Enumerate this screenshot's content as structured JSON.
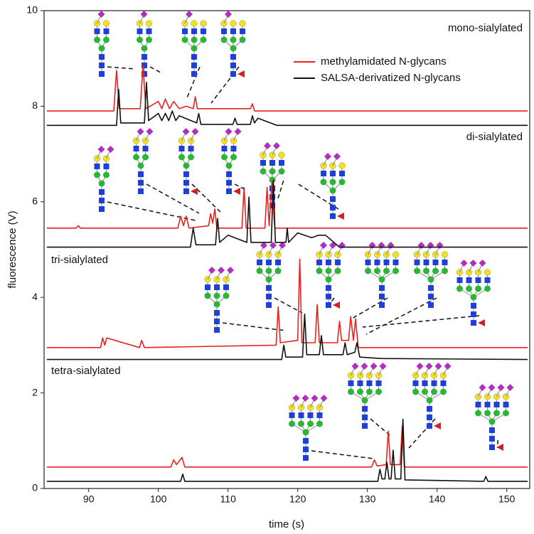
{
  "chart_data": {
    "type": "line",
    "x_label": "time (s)",
    "y_label": "fluorescence (V)",
    "xlim": [
      83.6,
      153.3
    ],
    "ylim": [
      0,
      10
    ],
    "xticks": [
      90,
      100,
      110,
      120,
      130,
      140,
      150
    ],
    "yticks": [
      0,
      2,
      4,
      6,
      8,
      10
    ],
    "legend_position": "upper right",
    "series": [
      {
        "name": "methylamidated N-glycans",
        "color": "#e8231f"
      },
      {
        "name": "SALSA-derivatized N-glycans",
        "color": "#111111"
      }
    ],
    "panels": [
      {
        "label": "mono-sialylated",
        "series": [
          {
            "x": [
              84,
              93.6,
              94,
              94.4,
              97.4,
              97.8,
              98.2,
              100,
              100.5,
              101,
              101.6,
              102.2,
              103,
              104,
              105,
              105.3,
              105.6,
              108,
              113.2,
              113.5,
              113.8,
              153
            ],
            "values": [
              7.9,
              7.9,
              8.75,
              7.95,
              7.95,
              8.85,
              7.95,
              8.1,
              7.95,
              8.15,
              7.95,
              8.1,
              7.95,
              8.0,
              7.95,
              8.2,
              7.95,
              7.95,
              7.95,
              8.05,
              7.9,
              7.9
            ]
          },
          {
            "x": [
              84,
              94,
              94.3,
              94.6,
              98,
              98.3,
              98.6,
              100,
              100.5,
              101,
              101.5,
              102,
              102.5,
              103,
              105.5,
              105.8,
              106.1,
              110.7,
              111,
              111.3,
              113.2,
              113.5,
              113.8,
              114.3,
              117,
              153
            ],
            "values": [
              7.6,
              7.6,
              8.35,
              7.65,
              7.65,
              8.5,
              7.7,
              7.85,
              7.7,
              7.85,
              7.7,
              7.9,
              7.7,
              7.8,
              7.65,
              7.85,
              7.62,
              7.62,
              7.75,
              7.62,
              7.62,
              7.8,
              7.65,
              7.75,
              7.6,
              7.6
            ]
          }
        ]
      },
      {
        "label": "di-sialylated",
        "series": [
          {
            "x": [
              84,
              88.2,
              88.5,
              88.8,
              102.8,
              103.2,
              103.6,
              104,
              104.4,
              107.2,
              107.5,
              107.8,
              108.1,
              108.4,
              112,
              112.3,
              112.6,
              115.3,
              115.6,
              115.9,
              116.3,
              116.7,
              153
            ],
            "values": [
              5.45,
              5.45,
              5.5,
              5.45,
              5.45,
              5.7,
              5.5,
              5.7,
              5.45,
              5.5,
              5.75,
              5.55,
              5.85,
              5.45,
              5.45,
              6.3,
              5.45,
              5.45,
              6.3,
              5.5,
              6.4,
              5.45,
              5.45
            ]
          },
          {
            "x": [
              84,
              104.6,
              105,
              105.4,
              108.2,
              108.5,
              108.8,
              110,
              112.7,
              113,
              113.3,
              116.2,
              116.5,
              116.8,
              118.3,
              118.5,
              118.7,
              120,
              122,
              123,
              124,
              126,
              153
            ],
            "values": [
              5.05,
              5.05,
              5.45,
              5.1,
              5.1,
              5.65,
              5.15,
              5.3,
              5.15,
              6.1,
              5.15,
              5.15,
              6.45,
              5.15,
              5.15,
              5.45,
              5.15,
              5.35,
              5.25,
              5.3,
              5.3,
              5.05,
              5.05
            ]
          }
        ]
      },
      {
        "label": "tri-sialylated",
        "series": [
          {
            "x": [
              84,
              91.7,
              92,
              92.3,
              92.6,
              97.3,
              97.6,
              98,
              116.9,
              117.2,
              117.5,
              120,
              120.3,
              120.6,
              122.5,
              122.8,
              123.1,
              125.7,
              126,
              126.3,
              127.3,
              127.6,
              128,
              128.3,
              128.7,
              153
            ],
            "values": [
              2.95,
              2.95,
              3.15,
              3.0,
              3.15,
              2.95,
              3.1,
              2.95,
              3.0,
              3.8,
              3.05,
              3.1,
              4.8,
              3.05,
              3.05,
              3.85,
              3.05,
              3.05,
              3.5,
              3.1,
              3.1,
              3.6,
              3.1,
              3.55,
              2.95,
              2.95
            ]
          },
          {
            "x": [
              84,
              117.7,
              118,
              118.3,
              120.7,
              121,
              121.3,
              123.1,
              123.4,
              123.7,
              126.5,
              126.8,
              127.1,
              128.2,
              128.5,
              128.9,
              132,
              153
            ],
            "values": [
              2.7,
              2.7,
              3.0,
              2.75,
              2.75,
              3.65,
              2.8,
              2.8,
              3.2,
              2.8,
              2.8,
              3.05,
              2.8,
              2.85,
              3.05,
              2.75,
              2.72,
              2.7
            ]
          }
        ]
      },
      {
        "label": "tetra-sialylated",
        "series": [
          {
            "x": [
              84,
              101.8,
              102.2,
              102.6,
              103.4,
              103.8,
              130.6,
              131,
              131.4,
              132.7,
              133,
              133.3,
              134.7,
              135,
              135.3,
              153
            ],
            "values": [
              0.45,
              0.45,
              0.6,
              0.5,
              0.65,
              0.45,
              0.45,
              0.6,
              0.47,
              0.5,
              1.2,
              0.5,
              0.5,
              1.3,
              0.45,
              0.45
            ]
          },
          {
            "x": [
              84,
              103.2,
              103.5,
              103.8,
              131.5,
              131.8,
              132.1,
              132.5,
              132.8,
              133.1,
              133.4,
              133.7,
              134,
              134.8,
              135.1,
              135.4,
              146.7,
              147,
              147.3,
              153
            ],
            "values": [
              0.15,
              0.15,
              0.3,
              0.15,
              0.15,
              0.4,
              0.2,
              0.2,
              0.55,
              0.2,
              0.2,
              0.8,
              0.2,
              0.2,
              1.45,
              0.18,
              0.15,
              0.25,
              0.15,
              0.15
            ]
          }
        ]
      }
    ]
  }
}
